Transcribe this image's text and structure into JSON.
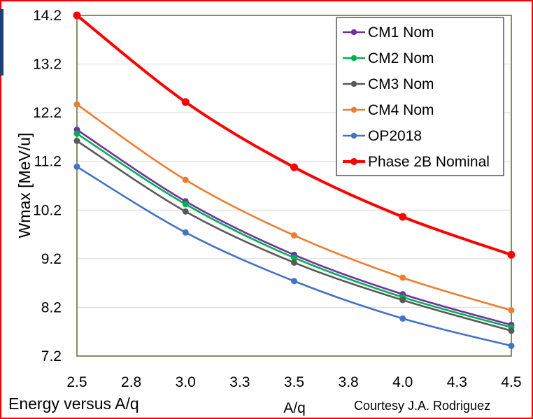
{
  "chart_data": {
    "type": "line",
    "ylabel": "Wmax [MeV/u]",
    "xlabel": "A/q",
    "xlim": [
      2.5,
      4.5
    ],
    "ylim": [
      7.2,
      14.2
    ],
    "x_ticks": [
      "2.5",
      "2.8",
      "3.0",
      "3.3",
      "3.5",
      "3.8",
      "4.0",
      "4.3",
      "4.5"
    ],
    "y_ticks": [
      "7.2",
      "8.2",
      "9.2",
      "10.2",
      "11.2",
      "12.2",
      "13.2",
      "14.2"
    ],
    "legend_position": "top-right",
    "grid": "horizontal",
    "x": [
      2.5,
      3.0,
      3.5,
      4.0,
      4.5
    ],
    "series": [
      {
        "name": "CM1 Nom",
        "color": "#7030a0",
        "values": [
          11.85,
          10.38,
          9.28,
          8.47,
          7.84
        ]
      },
      {
        "name": "CM2 Nom",
        "color": "#00b050",
        "values": [
          11.77,
          10.32,
          9.22,
          8.41,
          7.79
        ]
      },
      {
        "name": "CM3 Nom",
        "color": "#595959",
        "values": [
          11.62,
          10.17,
          9.12,
          8.35,
          7.72
        ]
      },
      {
        "name": "CM4 Nom",
        "color": "#ed7d31",
        "values": [
          12.37,
          10.82,
          9.68,
          8.81,
          8.14
        ]
      },
      {
        "name": "OP2018",
        "color": "#4472c4",
        "values": [
          11.09,
          9.74,
          8.74,
          7.97,
          7.41
        ]
      },
      {
        "name": "Phase 2B Nominal",
        "color": "#ff0000",
        "values": [
          14.2,
          12.42,
          11.08,
          10.06,
          9.28
        ]
      }
    ]
  },
  "captions": {
    "left": "Energy versus A/q",
    "right": "Courtesy J.A. Rodriguez"
  },
  "colors": {
    "border": "#ff0000",
    "plot_border": "#556b2f",
    "accent_bar": "#1f3f7a",
    "gridline": "#d9d9d9"
  }
}
